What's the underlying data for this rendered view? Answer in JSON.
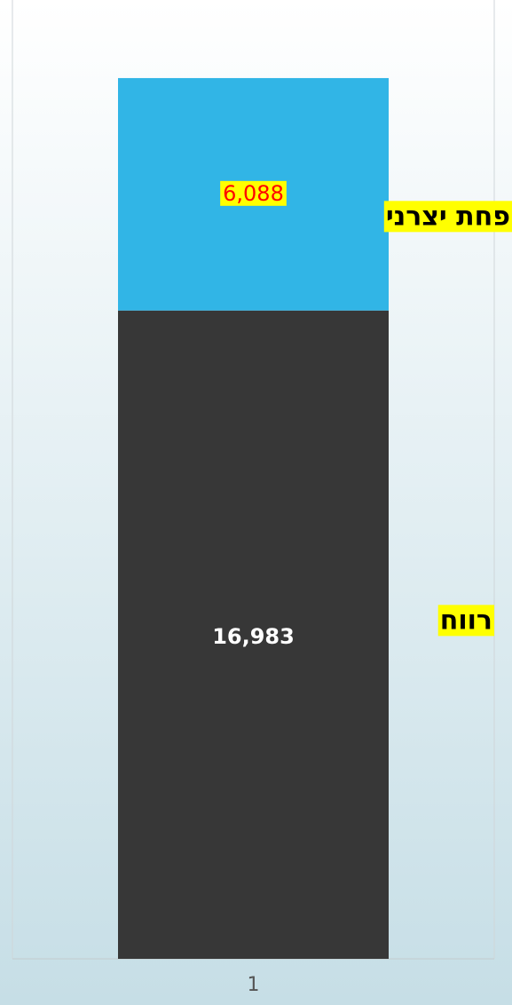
{
  "chart_data": {
    "type": "stacked-bar",
    "categories": [
      "1"
    ],
    "series": [
      {
        "name": "רווח",
        "color": "#373737",
        "values": [
          16983
        ],
        "value_labels": [
          "16,983"
        ]
      },
      {
        "name": "פחת יצרני",
        "color": "#31b5e6",
        "values": [
          6088
        ],
        "value_labels": [
          "6,088"
        ]
      }
    ],
    "ylim": [
      0,
      25000
    ]
  }
}
